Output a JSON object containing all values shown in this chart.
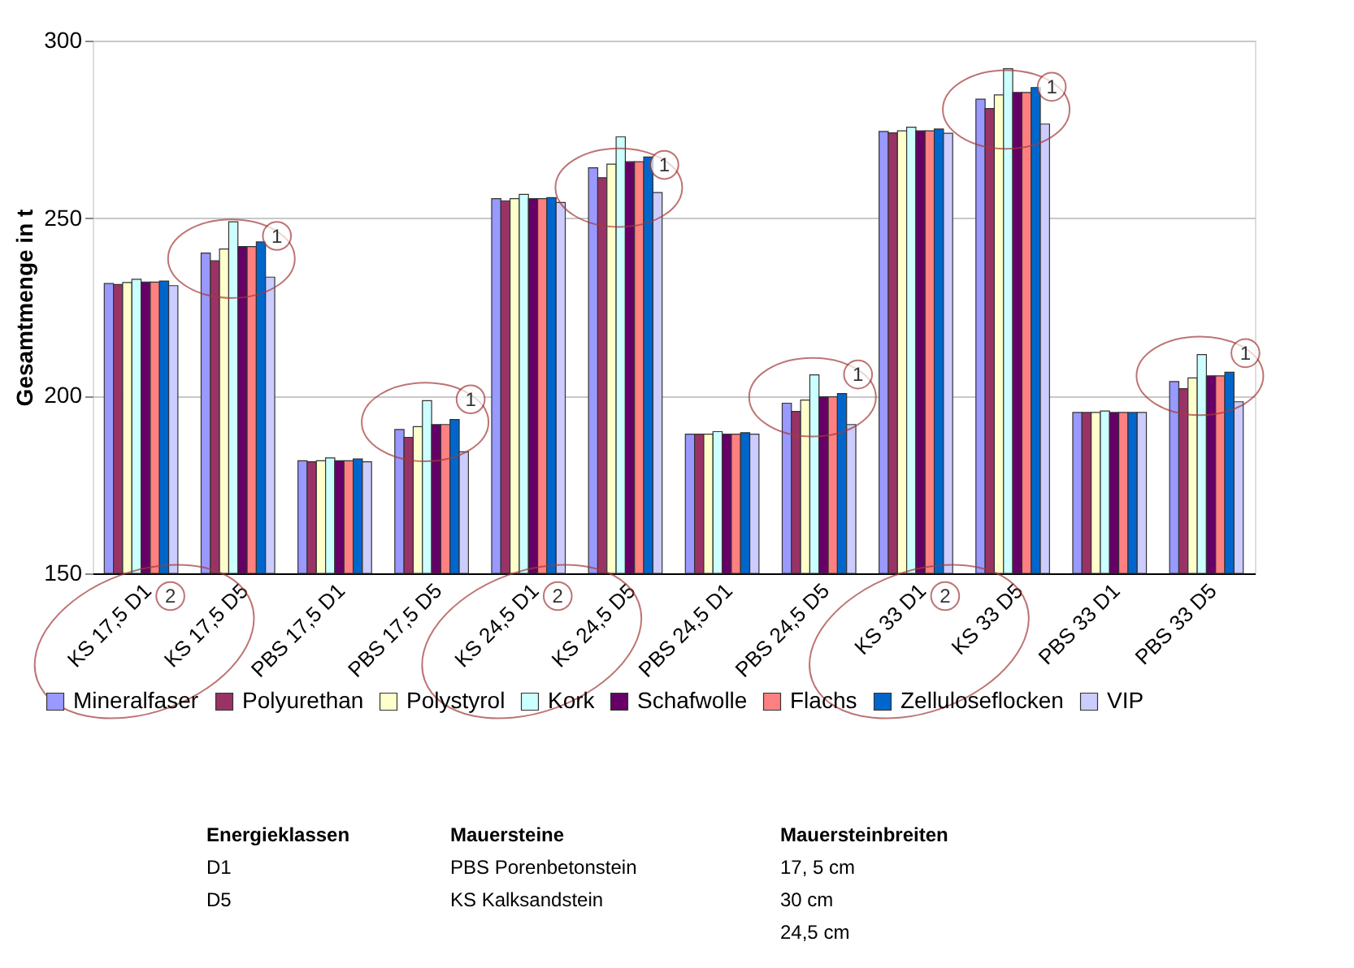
{
  "chart_data": {
    "type": "bar",
    "ylabel": "Gesamtmenge in t",
    "ylim": [
      150,
      300
    ],
    "yticks": [
      150,
      200,
      250,
      300
    ],
    "grid": "y",
    "legend": "bottom",
    "categories": [
      "KS 17,5 D1",
      "KS 17,5 D5",
      "PBS 17,5 D1",
      "PBS 17,5 D5",
      "KS 24,5 D1",
      "KS 24,5 D5",
      "PBS 24,5 D1",
      "PBS 24,5 D5",
      "KS 33 D1",
      "KS 33 D5",
      "PBS 33 D1",
      "PBS 33 D5"
    ],
    "series": [
      {
        "name": "Mineralfaser",
        "color": "#9999ff",
        "values": [
          231.6,
          240.2,
          181.7,
          190.5,
          255.5,
          264.2,
          189.2,
          197.9,
          274.4,
          283.5,
          195.3,
          204.0
        ]
      },
      {
        "name": "Polyurethan",
        "color": "#993366",
        "values": [
          231.3,
          238.0,
          181.4,
          188.3,
          254.9,
          261.4,
          189.2,
          195.6,
          274.0,
          280.9,
          195.3,
          202.0
        ]
      },
      {
        "name": "Polystyrol",
        "color": "#ffffcc",
        "values": [
          231.9,
          241.3,
          181.7,
          191.3,
          255.5,
          265.2,
          189.2,
          198.8,
          274.6,
          284.7,
          195.3,
          205.0
        ]
      },
      {
        "name": "Kork",
        "color": "#ccffff",
        "values": [
          232.8,
          249.0,
          182.5,
          198.6,
          256.7,
          272.9,
          189.9,
          205.9,
          275.6,
          292.1,
          195.7,
          211.6
        ]
      },
      {
        "name": "Schafwolle",
        "color": "#660066",
        "values": [
          232.0,
          242.0,
          181.7,
          191.9,
          255.5,
          265.9,
          189.2,
          199.7,
          274.6,
          285.4,
          195.3,
          205.6
        ]
      },
      {
        "name": "Flachs",
        "color": "#ff8080",
        "values": [
          232.0,
          242.0,
          181.7,
          191.9,
          255.5,
          265.9,
          189.2,
          199.7,
          274.6,
          285.4,
          195.3,
          205.6
        ]
      },
      {
        "name": "Zelluloseflocken",
        "color": "#0066cc",
        "values": [
          232.3,
          243.3,
          182.2,
          193.3,
          255.8,
          267.2,
          189.6,
          200.6,
          275.1,
          286.8,
          195.3,
          206.6
        ]
      },
      {
        "name": "VIP",
        "color": "#ccccff",
        "values": [
          231.0,
          233.4,
          181.4,
          184.2,
          254.4,
          257.2,
          189.2,
          191.9,
          273.9,
          276.5,
          195.3,
          198.3
        ]
      }
    ],
    "annotations": [
      {
        "text": "1",
        "x": "KS 17,5 D5",
        "y": 245
      },
      {
        "text": "1",
        "x": "PBS 17,5 D5",
        "y": 199
      },
      {
        "text": "1",
        "x": "KS 24,5 D5",
        "y": 265
      },
      {
        "text": "1",
        "x": "PBS 24,5 D5",
        "y": 206
      },
      {
        "text": "1",
        "x": "KS 33 D5",
        "y": 287
      },
      {
        "text": "1",
        "x": "PBS 33 D5",
        "y": 212
      },
      "2",
      "2",
      "2",
      "Energieklassen\nD1\nD5",
      "Mauersteine\nPBS  Porenbetonstein\nKS    Kalksandstein",
      "Mauersteinbreiten\n17, 5  cm\n30      cm\n24,5   cm"
    ]
  }
}
